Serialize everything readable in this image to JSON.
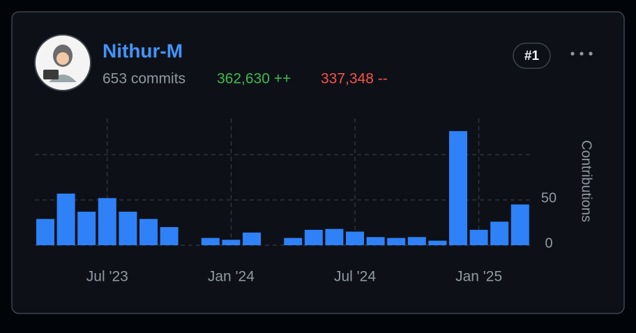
{
  "user": {
    "name": "Nithur-M",
    "commits": "653 commits",
    "additions": "362,630 ++",
    "deletions": "337,348 --",
    "rank": "#1"
  },
  "chart_data": {
    "type": "bar",
    "categories": [
      null,
      null,
      null,
      "Jul '23",
      null,
      null,
      null,
      null,
      null,
      "Jan '24",
      null,
      null,
      null,
      null,
      null,
      "Jul '24",
      null,
      null,
      null,
      null,
      null,
      "Jan '25",
      null,
      null
    ],
    "values": [
      29,
      57,
      37,
      52,
      37,
      29,
      20,
      0,
      8,
      6,
      14,
      0,
      8,
      17,
      18,
      15,
      9,
      8,
      9,
      5,
      126,
      17,
      26,
      45
    ],
    "color": "#2f81f7",
    "ylabel": "Contributions",
    "ylim": [
      0,
      140
    ],
    "yticks": [
      0,
      50
    ],
    "ygrid": [
      0,
      50,
      100
    ],
    "grid": true
  }
}
